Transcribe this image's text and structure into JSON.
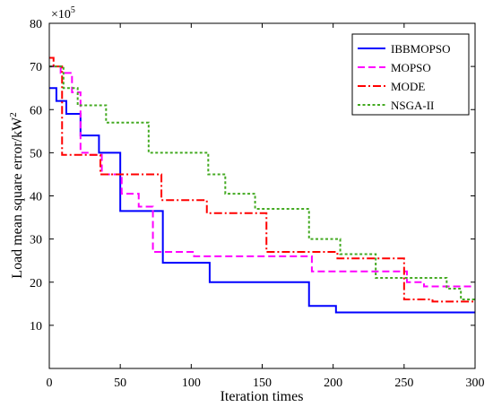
{
  "chart_data": {
    "type": "line",
    "xlabel": "Iteration times",
    "ylabel_main": "Load mean square error/kW",
    "ylabel_sup": "2",
    "multiplier_base": "×10",
    "multiplier_exp": "5",
    "xlim": [
      0,
      300
    ],
    "ylim": [
      0,
      80
    ],
    "xticks": [
      0,
      50,
      100,
      150,
      200,
      250,
      300
    ],
    "yticks": [
      10,
      20,
      30,
      40,
      50,
      60,
      70,
      80
    ],
    "grid": false,
    "legend": "top-right",
    "step": true,
    "series": [
      {
        "name": "IBBMOPSO",
        "color": "#0000ff",
        "dash": "solid",
        "x": [
          0,
          5,
          12,
          22,
          35,
          37,
          50,
          80,
          113,
          183,
          202,
          300
        ],
        "y": [
          65,
          62,
          59,
          54,
          50,
          50,
          36.5,
          24.5,
          20,
          14.5,
          13,
          13
        ]
      },
      {
        "name": "MOPSO",
        "color": "#ff00ff",
        "dash": "dash",
        "x": [
          0,
          8,
          16,
          22,
          27,
          37,
          51,
          63,
          73,
          102,
          185,
          252,
          264,
          300
        ],
        "y": [
          70,
          68.5,
          64,
          50,
          49.5,
          45,
          40.5,
          37.5,
          27,
          26,
          22.5,
          20,
          19,
          19
        ]
      },
      {
        "name": "MODE",
        "color": "#ff0000",
        "dash": "dashdot",
        "x": [
          0,
          3,
          9,
          36,
          48,
          79,
          111,
          153,
          203,
          250,
          270,
          300
        ],
        "y": [
          72,
          70,
          49.5,
          45,
          45,
          39,
          36,
          27,
          25.5,
          16,
          15.5,
          15.5
        ]
      },
      {
        "name": "NSGA-II",
        "color": "#44aa22",
        "dash": "dot",
        "x": [
          0,
          10,
          20,
          40,
          70,
          112,
          124,
          145,
          183,
          205,
          230,
          280,
          290,
          300
        ],
        "y": [
          70,
          65,
          61,
          57,
          50,
          45,
          40.5,
          37,
          30,
          26.5,
          21,
          18.5,
          16,
          16
        ]
      }
    ]
  }
}
